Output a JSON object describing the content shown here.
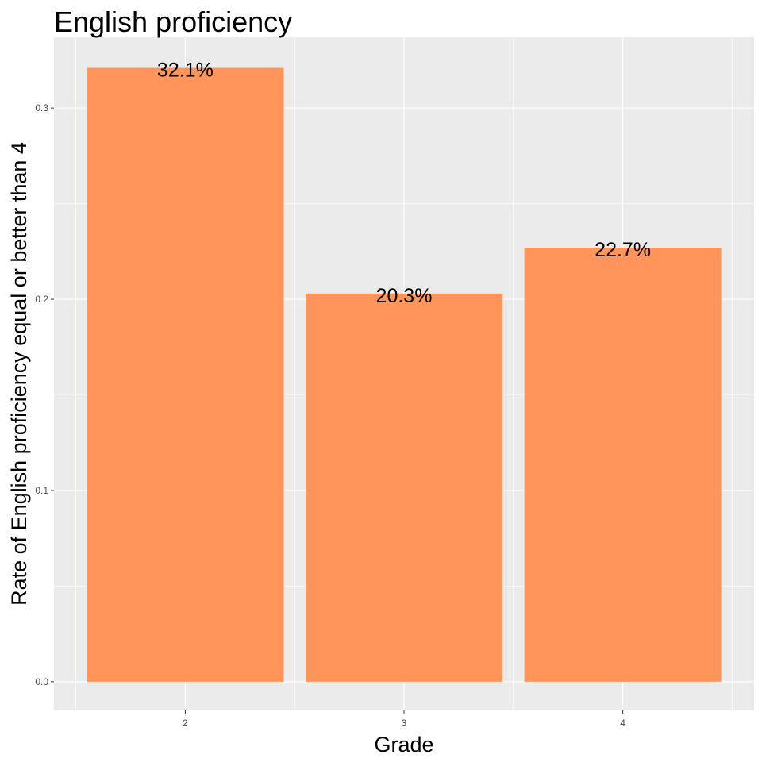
{
  "chart_data": {
    "type": "bar",
    "title": "English proficiency",
    "xlabel": "Grade",
    "ylabel": "Rate of English proficiency equal or better than 4",
    "categories": [
      "2",
      "3",
      "4"
    ],
    "values": [
      0.321,
      0.203,
      0.227
    ],
    "data_labels": [
      "32.1%",
      "20.3%",
      "22.7%"
    ],
    "ylim": [
      -0.015,
      0.337
    ],
    "yticks": [
      0.0,
      0.1,
      0.2,
      0.3
    ],
    "ytick_labels": [
      "0.0",
      "0.1",
      "0.2",
      "0.3"
    ],
    "grid": true,
    "legend": "none",
    "colors": {
      "bar": "#FF955A",
      "panel": "#EBEBEB",
      "grid_major": "#FFFFFF",
      "tick_text": "#4D4D4D"
    }
  }
}
